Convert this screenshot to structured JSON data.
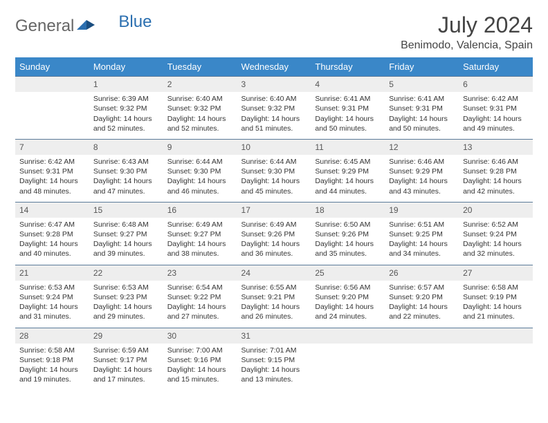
{
  "logo": {
    "part1": "General",
    "part2": "Blue"
  },
  "title": "July 2024",
  "subtitle": "Benimodo, Valencia, Spain",
  "colors": {
    "header_bg": "#3a87c8",
    "header_text": "#ffffff",
    "daynum_bg": "#eeeeee",
    "daynum_border": "#5a7a99",
    "logo_blue": "#2b6fb0"
  },
  "weekdays": [
    "Sunday",
    "Monday",
    "Tuesday",
    "Wednesday",
    "Thursday",
    "Friday",
    "Saturday"
  ],
  "weeks": [
    {
      "nums": [
        "",
        "1",
        "2",
        "3",
        "4",
        "5",
        "6"
      ],
      "cells": [
        null,
        {
          "sr": "Sunrise: 6:39 AM",
          "ss": "Sunset: 9:32 PM",
          "dl1": "Daylight: 14 hours",
          "dl2": "and 52 minutes."
        },
        {
          "sr": "Sunrise: 6:40 AM",
          "ss": "Sunset: 9:32 PM",
          "dl1": "Daylight: 14 hours",
          "dl2": "and 52 minutes."
        },
        {
          "sr": "Sunrise: 6:40 AM",
          "ss": "Sunset: 9:32 PM",
          "dl1": "Daylight: 14 hours",
          "dl2": "and 51 minutes."
        },
        {
          "sr": "Sunrise: 6:41 AM",
          "ss": "Sunset: 9:31 PM",
          "dl1": "Daylight: 14 hours",
          "dl2": "and 50 minutes."
        },
        {
          "sr": "Sunrise: 6:41 AM",
          "ss": "Sunset: 9:31 PM",
          "dl1": "Daylight: 14 hours",
          "dl2": "and 50 minutes."
        },
        {
          "sr": "Sunrise: 6:42 AM",
          "ss": "Sunset: 9:31 PM",
          "dl1": "Daylight: 14 hours",
          "dl2": "and 49 minutes."
        }
      ]
    },
    {
      "nums": [
        "7",
        "8",
        "9",
        "10",
        "11",
        "12",
        "13"
      ],
      "cells": [
        {
          "sr": "Sunrise: 6:42 AM",
          "ss": "Sunset: 9:31 PM",
          "dl1": "Daylight: 14 hours",
          "dl2": "and 48 minutes."
        },
        {
          "sr": "Sunrise: 6:43 AM",
          "ss": "Sunset: 9:30 PM",
          "dl1": "Daylight: 14 hours",
          "dl2": "and 47 minutes."
        },
        {
          "sr": "Sunrise: 6:44 AM",
          "ss": "Sunset: 9:30 PM",
          "dl1": "Daylight: 14 hours",
          "dl2": "and 46 minutes."
        },
        {
          "sr": "Sunrise: 6:44 AM",
          "ss": "Sunset: 9:30 PM",
          "dl1": "Daylight: 14 hours",
          "dl2": "and 45 minutes."
        },
        {
          "sr": "Sunrise: 6:45 AM",
          "ss": "Sunset: 9:29 PM",
          "dl1": "Daylight: 14 hours",
          "dl2": "and 44 minutes."
        },
        {
          "sr": "Sunrise: 6:46 AM",
          "ss": "Sunset: 9:29 PM",
          "dl1": "Daylight: 14 hours",
          "dl2": "and 43 minutes."
        },
        {
          "sr": "Sunrise: 6:46 AM",
          "ss": "Sunset: 9:28 PM",
          "dl1": "Daylight: 14 hours",
          "dl2": "and 42 minutes."
        }
      ]
    },
    {
      "nums": [
        "14",
        "15",
        "16",
        "17",
        "18",
        "19",
        "20"
      ],
      "cells": [
        {
          "sr": "Sunrise: 6:47 AM",
          "ss": "Sunset: 9:28 PM",
          "dl1": "Daylight: 14 hours",
          "dl2": "and 40 minutes."
        },
        {
          "sr": "Sunrise: 6:48 AM",
          "ss": "Sunset: 9:27 PM",
          "dl1": "Daylight: 14 hours",
          "dl2": "and 39 minutes."
        },
        {
          "sr": "Sunrise: 6:49 AM",
          "ss": "Sunset: 9:27 PM",
          "dl1": "Daylight: 14 hours",
          "dl2": "and 38 minutes."
        },
        {
          "sr": "Sunrise: 6:49 AM",
          "ss": "Sunset: 9:26 PM",
          "dl1": "Daylight: 14 hours",
          "dl2": "and 36 minutes."
        },
        {
          "sr": "Sunrise: 6:50 AM",
          "ss": "Sunset: 9:26 PM",
          "dl1": "Daylight: 14 hours",
          "dl2": "and 35 minutes."
        },
        {
          "sr": "Sunrise: 6:51 AM",
          "ss": "Sunset: 9:25 PM",
          "dl1": "Daylight: 14 hours",
          "dl2": "and 34 minutes."
        },
        {
          "sr": "Sunrise: 6:52 AM",
          "ss": "Sunset: 9:24 PM",
          "dl1": "Daylight: 14 hours",
          "dl2": "and 32 minutes."
        }
      ]
    },
    {
      "nums": [
        "21",
        "22",
        "23",
        "24",
        "25",
        "26",
        "27"
      ],
      "cells": [
        {
          "sr": "Sunrise: 6:53 AM",
          "ss": "Sunset: 9:24 PM",
          "dl1": "Daylight: 14 hours",
          "dl2": "and 31 minutes."
        },
        {
          "sr": "Sunrise: 6:53 AM",
          "ss": "Sunset: 9:23 PM",
          "dl1": "Daylight: 14 hours",
          "dl2": "and 29 minutes."
        },
        {
          "sr": "Sunrise: 6:54 AM",
          "ss": "Sunset: 9:22 PM",
          "dl1": "Daylight: 14 hours",
          "dl2": "and 27 minutes."
        },
        {
          "sr": "Sunrise: 6:55 AM",
          "ss": "Sunset: 9:21 PM",
          "dl1": "Daylight: 14 hours",
          "dl2": "and 26 minutes."
        },
        {
          "sr": "Sunrise: 6:56 AM",
          "ss": "Sunset: 9:20 PM",
          "dl1": "Daylight: 14 hours",
          "dl2": "and 24 minutes."
        },
        {
          "sr": "Sunrise: 6:57 AM",
          "ss": "Sunset: 9:20 PM",
          "dl1": "Daylight: 14 hours",
          "dl2": "and 22 minutes."
        },
        {
          "sr": "Sunrise: 6:58 AM",
          "ss": "Sunset: 9:19 PM",
          "dl1": "Daylight: 14 hours",
          "dl2": "and 21 minutes."
        }
      ]
    },
    {
      "nums": [
        "28",
        "29",
        "30",
        "31",
        "",
        "",
        ""
      ],
      "cells": [
        {
          "sr": "Sunrise: 6:58 AM",
          "ss": "Sunset: 9:18 PM",
          "dl1": "Daylight: 14 hours",
          "dl2": "and 19 minutes."
        },
        {
          "sr": "Sunrise: 6:59 AM",
          "ss": "Sunset: 9:17 PM",
          "dl1": "Daylight: 14 hours",
          "dl2": "and 17 minutes."
        },
        {
          "sr": "Sunrise: 7:00 AM",
          "ss": "Sunset: 9:16 PM",
          "dl1": "Daylight: 14 hours",
          "dl2": "and 15 minutes."
        },
        {
          "sr": "Sunrise: 7:01 AM",
          "ss": "Sunset: 9:15 PM",
          "dl1": "Daylight: 14 hours",
          "dl2": "and 13 minutes."
        },
        null,
        null,
        null
      ]
    }
  ]
}
